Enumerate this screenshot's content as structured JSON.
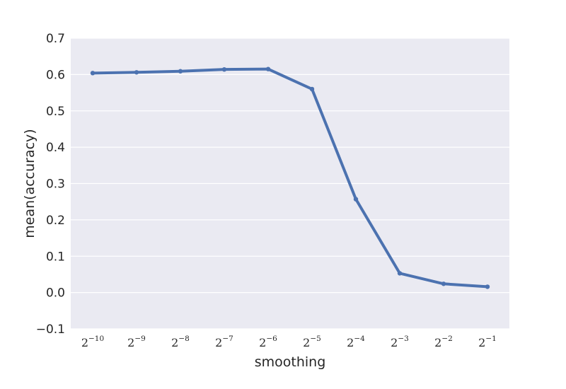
{
  "chart_data": {
    "type": "line",
    "title": "",
    "xlabel": "smoothing",
    "ylabel": "mean(accuracy)",
    "categories": [
      {
        "base": "2",
        "exp": "−10"
      },
      {
        "base": "2",
        "exp": "−9"
      },
      {
        "base": "2",
        "exp": "−8"
      },
      {
        "base": "2",
        "exp": "−7"
      },
      {
        "base": "2",
        "exp": "−6"
      },
      {
        "base": "2",
        "exp": "−5"
      },
      {
        "base": "2",
        "exp": "−4"
      },
      {
        "base": "2",
        "exp": "−3"
      },
      {
        "base": "2",
        "exp": "−2"
      },
      {
        "base": "2",
        "exp": "−1"
      }
    ],
    "series": [
      {
        "values": [
          0.604,
          0.606,
          0.609,
          0.614,
          0.615,
          0.56,
          0.257,
          0.053,
          0.024,
          0.016
        ],
        "ci_low": [
          0.6,
          0.602,
          0.605,
          0.61,
          0.61,
          0.556,
          0.251,
          0.05,
          0.022,
          0.014
        ],
        "ci_high": [
          0.608,
          0.61,
          0.613,
          0.618,
          0.62,
          0.564,
          0.263,
          0.056,
          0.026,
          0.018
        ],
        "color": "#4c72b0"
      }
    ],
    "ylim": [
      -0.1,
      0.7
    ],
    "yticks": [
      -0.1,
      0.0,
      0.1,
      0.2,
      0.3,
      0.4,
      0.5,
      0.6,
      0.7
    ],
    "ytick_labels": [
      "−0.1",
      "0.0",
      "0.1",
      "0.2",
      "0.3",
      "0.4",
      "0.5",
      "0.6",
      "0.7"
    ],
    "grid": true,
    "background_color": "#eaeaf2",
    "grid_color": "#ffffff"
  }
}
